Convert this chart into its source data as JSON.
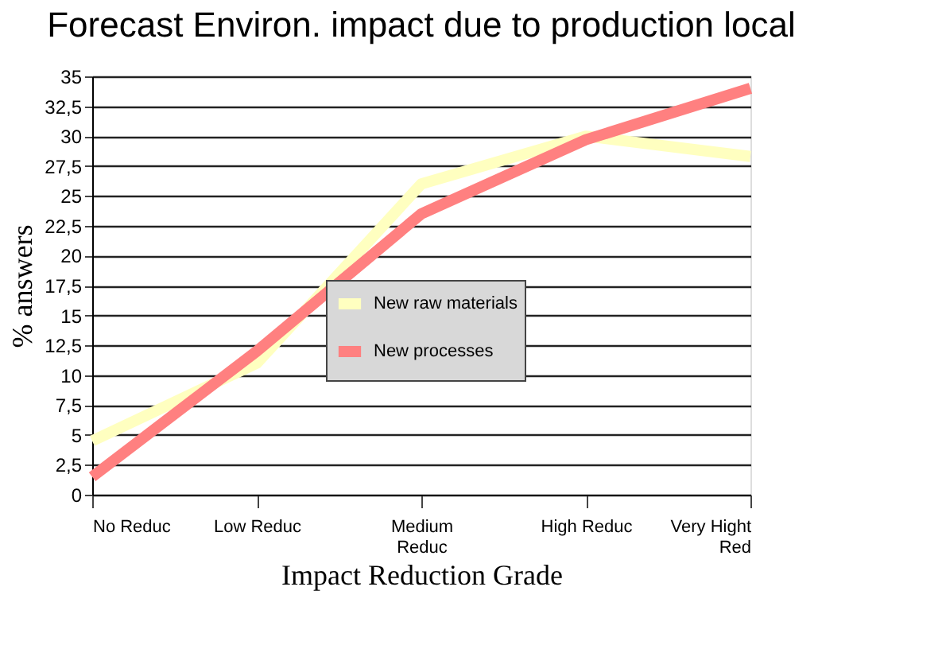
{
  "chart_data": {
    "type": "line",
    "title": "Forecast Environ. impact due to production local",
    "xlabel": "Impact Reduction Grade",
    "ylabel": "% answers",
    "categories": [
      "No Reduc",
      "Low Reduc",
      "Medium Reduc",
      "High Reduc",
      "Very Hight Red"
    ],
    "series": [
      {
        "name": "New raw materials",
        "color": "#ffffc0",
        "values": [
          4.5,
          11,
          26,
          30,
          28.3
        ]
      },
      {
        "name": "New processes",
        "color": "#ff8080",
        "values": [
          1.5,
          12,
          23.5,
          29.7,
          34
        ]
      }
    ],
    "ylim": [
      0,
      35
    ],
    "yticks": [
      0,
      {
        "value": 2.5,
        "label": "2,5"
      },
      5,
      {
        "value": 7.5,
        "label": "7,5"
      },
      10,
      {
        "value": 12.5,
        "label": "12,5"
      },
      15,
      {
        "value": 17.5,
        "label": "17,5"
      },
      20,
      {
        "value": 22.5,
        "label": "22,5"
      },
      25,
      {
        "value": 27.5,
        "label": "27,5"
      },
      30,
      {
        "value": 32.5,
        "label": "32,5"
      },
      35
    ],
    "grid": "y",
    "legend": "center",
    "marker": "none",
    "line_style": "solid"
  }
}
